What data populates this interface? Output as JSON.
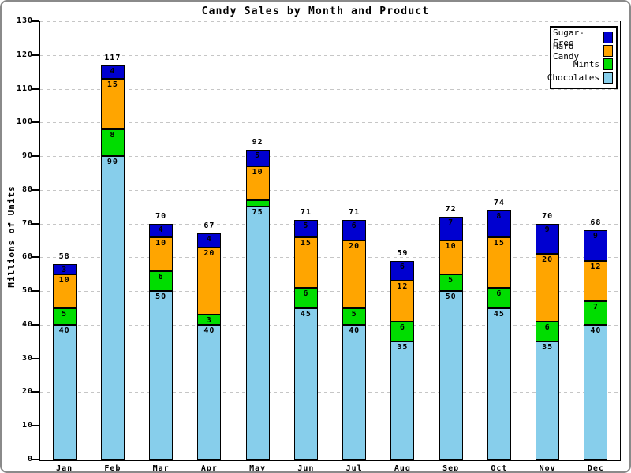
{
  "chart_data": {
    "type": "bar",
    "stacked": true,
    "title": "Candy Sales by Month and Product",
    "xlabel": "",
    "ylabel": "Millions of Units",
    "ylim": [
      0,
      130
    ],
    "ytick_step": 10,
    "grid": "horizontal-dashed",
    "legend_position": "top-right",
    "categories": [
      "Jan",
      "Feb",
      "Mar",
      "Apr",
      "May",
      "Jun",
      "Jul",
      "Aug",
      "Sep",
      "Oct",
      "Nov",
      "Dec"
    ],
    "series": [
      {
        "name": "Chocolates",
        "color": "#87CEEB",
        "values": [
          40,
          90,
          50,
          40,
          75,
          45,
          40,
          35,
          50,
          45,
          35,
          40
        ]
      },
      {
        "name": "Mints",
        "color": "#00DD00",
        "values": [
          5,
          8,
          6,
          3,
          2,
          6,
          5,
          6,
          5,
          6,
          6,
          7
        ]
      },
      {
        "name": "Hard Candy",
        "color": "#FFA500",
        "values": [
          10,
          15,
          10,
          20,
          10,
          15,
          20,
          12,
          10,
          15,
          20,
          12
        ]
      },
      {
        "name": "Sugar-Free",
        "color": "#0000D0",
        "values": [
          3,
          4,
          4,
          4,
          5,
          5,
          6,
          6,
          7,
          8,
          9,
          9
        ]
      }
    ],
    "totals": [
      58,
      117,
      70,
      67,
      92,
      71,
      71,
      59,
      72,
      74,
      70,
      68
    ],
    "legend": [
      "Sugar-Free",
      "Hard Candy",
      "Mints",
      "Chocolates"
    ]
  }
}
